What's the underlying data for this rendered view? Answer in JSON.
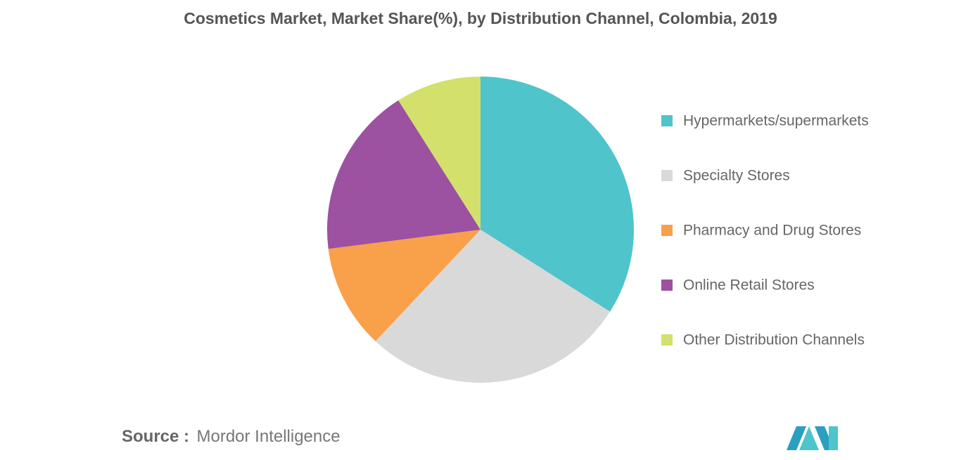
{
  "chart_data": {
    "type": "pie",
    "title": "Cosmetics Market, Market Share(%), by Distribution Channel, Colombia, 2019",
    "categories": [
      "Hypermarkets/supermarkets",
      "Specialty Stores",
      "Pharmacy and Drug Stores",
      "Online Retail Stores",
      "Other Distribution Channels"
    ],
    "values": [
      34,
      28,
      11,
      18,
      9
    ],
    "colors": [
      "#4fc4cb",
      "#d9d9d9",
      "#f9a04a",
      "#9c52a0",
      "#d3e06c"
    ],
    "legend": "right"
  },
  "footer": {
    "source_label": "Source :",
    "source": "Mordor Intelligence"
  }
}
